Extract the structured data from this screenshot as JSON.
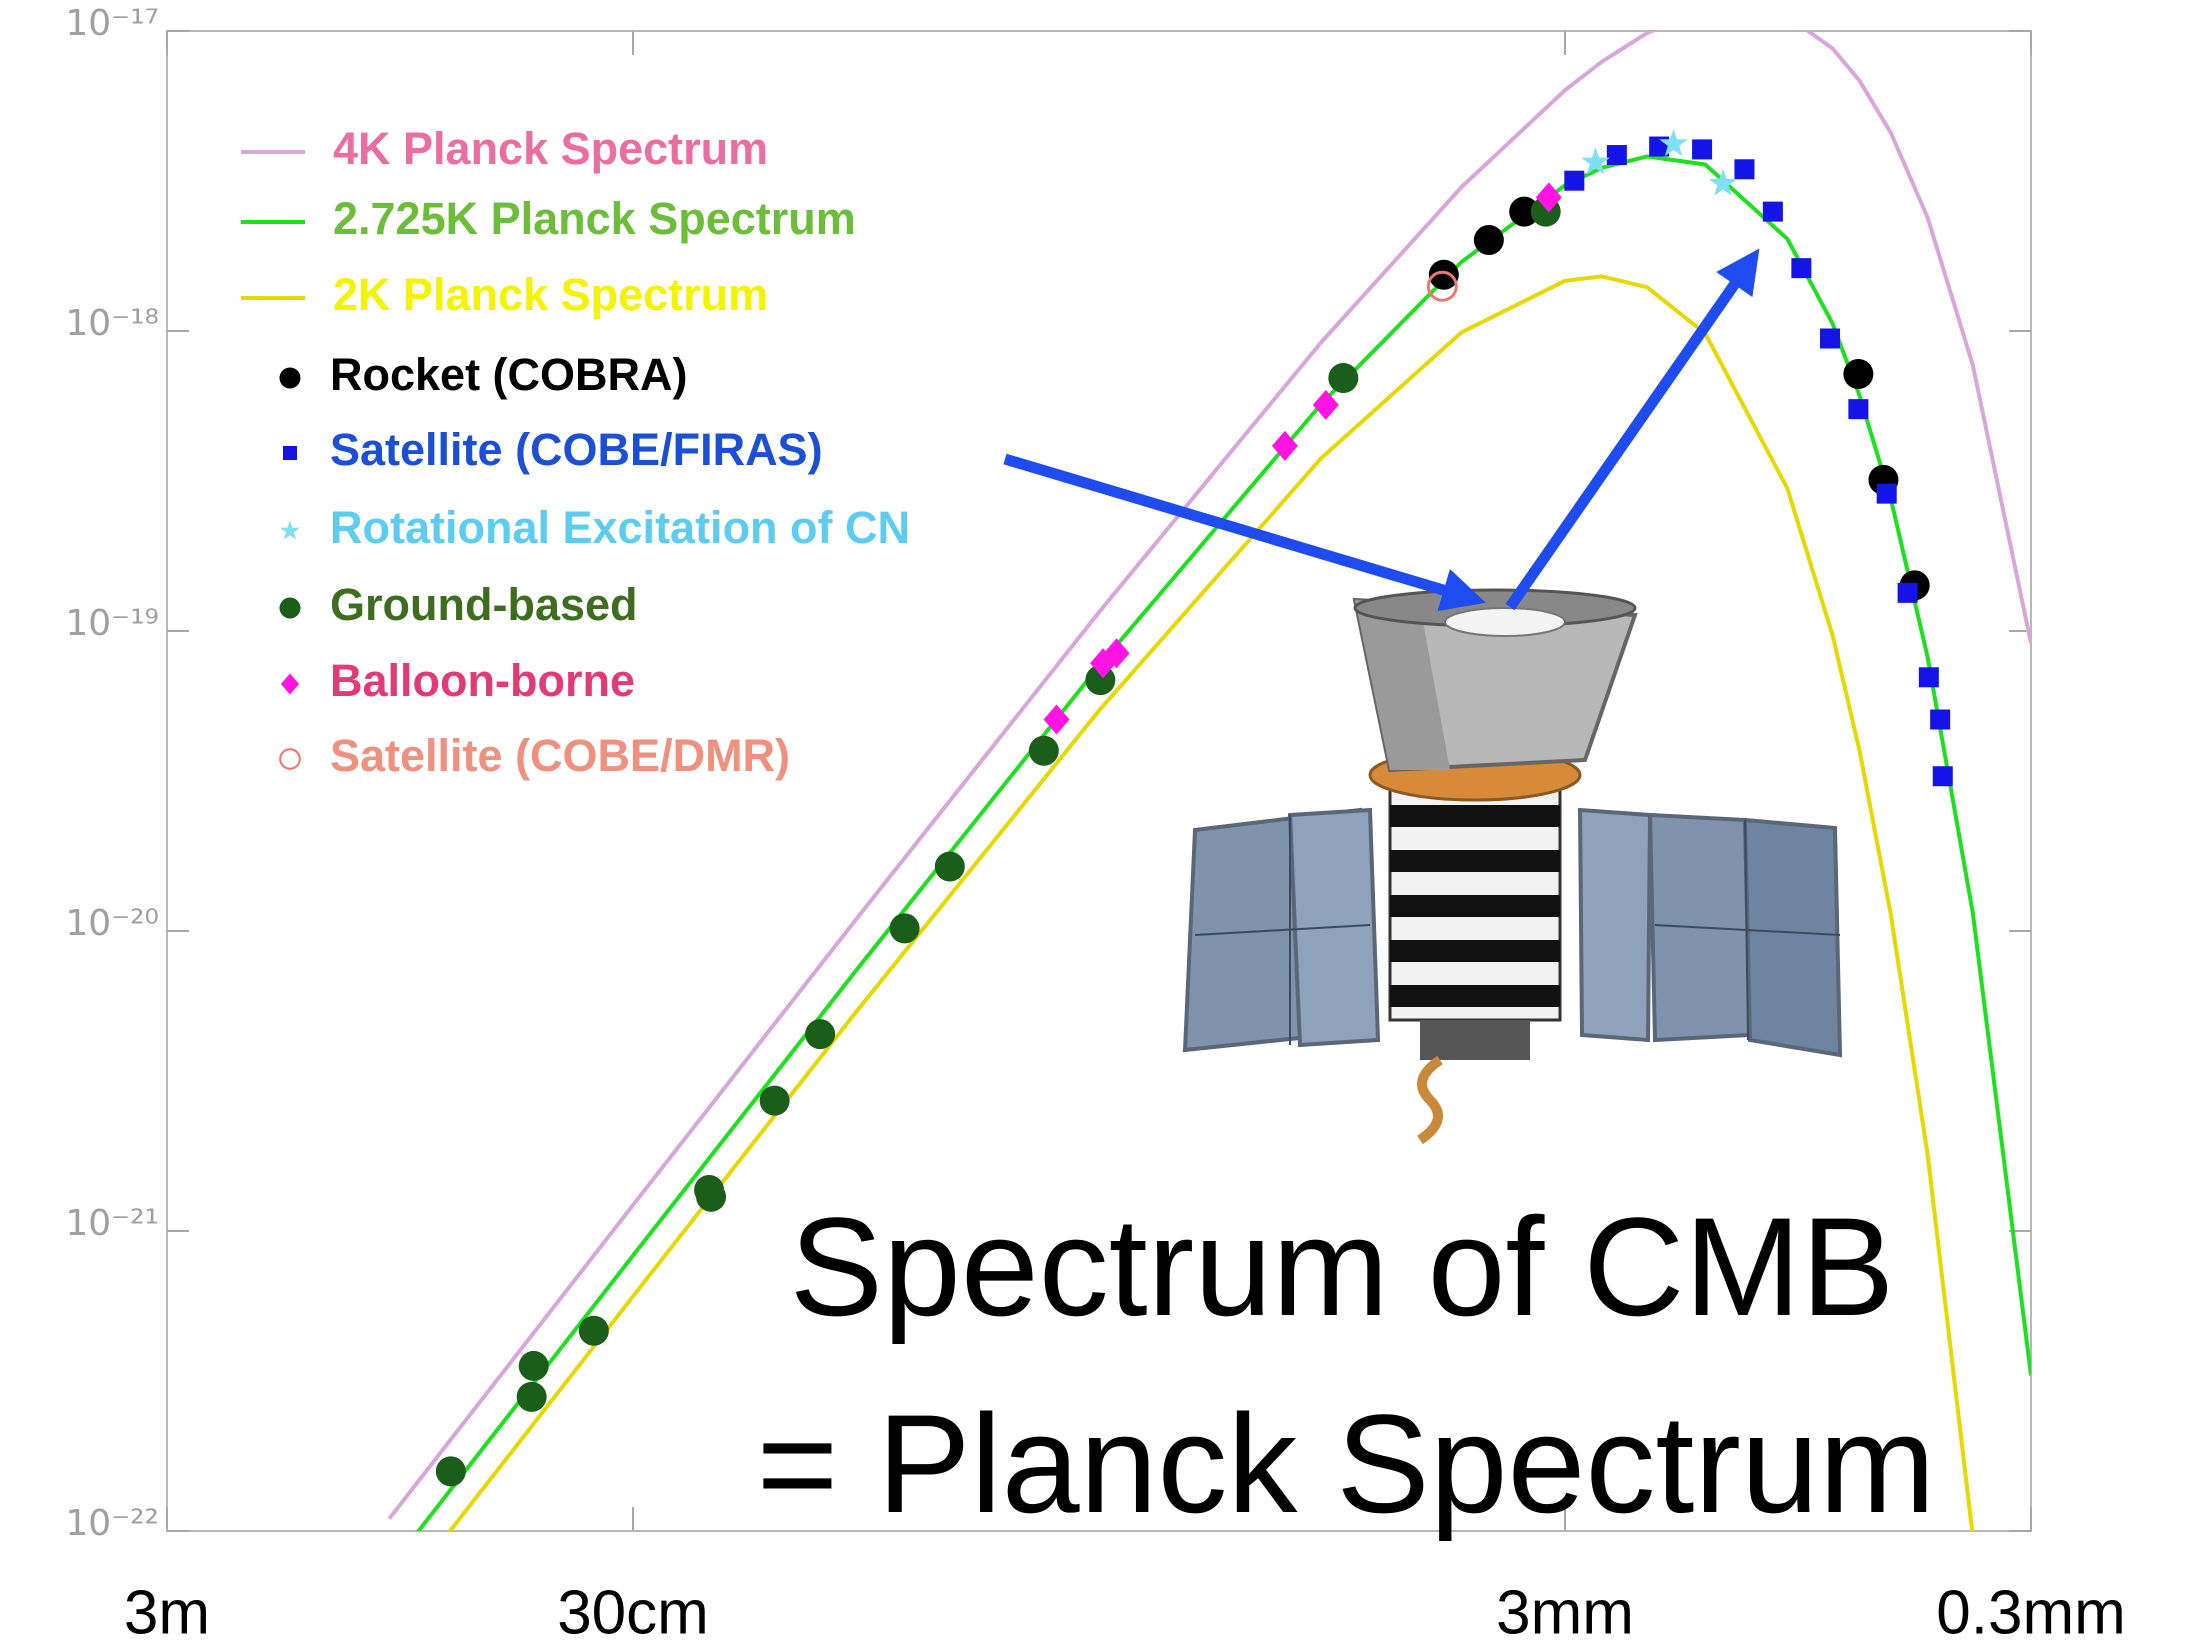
{
  "chart_data": {
    "type": "line",
    "xscale": "log",
    "yscale": "log",
    "xlim": [
      3,
      0.0003
    ],
    "ylim": [
      1e-22,
      1e-17
    ],
    "xticks": [
      {
        "value": 3,
        "label": "3m"
      },
      {
        "value": 0.3,
        "label": "30cm"
      },
      {
        "value": 0.003,
        "label": "3mm"
      },
      {
        "value": 0.0003,
        "label": "0.3mm"
      }
    ],
    "yticks": [
      {
        "value": 1e-22,
        "label": "10⁻²²"
      },
      {
        "value": 1e-21,
        "label": "10⁻²¹"
      },
      {
        "value": 1e-20,
        "label": "10⁻²⁰"
      },
      {
        "value": 1e-19,
        "label": "10⁻¹⁹"
      },
      {
        "value": 1e-18,
        "label": "10⁻¹⁸"
      },
      {
        "value": 1e-17,
        "label": "10⁻¹⁷"
      }
    ],
    "annotations": [
      "Spectrum of CMB",
      "= Planck Spectrum"
    ],
    "series": [
      {
        "name": "4K Planck Spectrum",
        "marker": "line",
        "color": "#d9a6dc",
        "text_color": "#ea6ea2",
        "x": [
          1,
          0.3,
          0.1,
          0.03,
          0.01,
          0.005,
          0.003,
          0.0025,
          0.002,
          0.0015,
          0.001,
          0.0008,
          0.0007,
          0.0006,
          0.0005,
          0.0004,
          0.0003
        ],
        "values": [
          1.1e-22,
          1.22e-21,
          1.085e-20,
          1.155e-19,
          9.18e-19,
          3.02e-18,
          6.35e-18,
          7.9e-18,
          9.85e-18,
          1.18e-17,
          1.12e-17,
          8.75e-18,
          6.83e-18,
          4.59e-18,
          2.39e-18,
          7.7e-19,
          9.1e-20
        ]
      },
      {
        "name": "2.725K Planck Spectrum",
        "marker": "line",
        "color": "#1ee01e",
        "text_color": "#6cbd3a",
        "x": [
          1,
          0.3,
          0.1,
          0.03,
          0.01,
          0.005,
          0.003,
          0.0025,
          0.002,
          0.0015,
          0.001,
          0.0008,
          0.0007,
          0.0006,
          0.0005,
          0.0004,
          0.0003
        ],
        "values": [
          7.5e-23,
          8.28e-22,
          7.33e-21,
          7.65e-20,
          5.71e-19,
          1.7e-18,
          3.06e-18,
          3.5e-18,
          3.82e-18,
          3.59e-18,
          2.03e-18,
          1.06e-18,
          6.1e-19,
          2.77e-19,
          8.2e-20,
          1.15e-20,
          3.3e-22
        ]
      },
      {
        "name": "2K Planck Spectrum",
        "marker": "line",
        "color": "#e6d800",
        "text_color": "#f4f400",
        "x": [
          1,
          0.3,
          0.1,
          0.03,
          0.01,
          0.005,
          0.003,
          0.0025,
          0.002,
          0.0015,
          0.001,
          0.0008,
          0.0007,
          0.0006,
          0.0005,
          0.0004
        ],
        "values": [
          5.5e-23,
          6.06e-22,
          5.33e-21,
          5.43e-20,
          3.77e-19,
          9.9e-19,
          1.47e-18,
          1.52e-18,
          1.4e-18,
          9.8e-19,
          2.99e-19,
          9.7e-20,
          4e-20,
          1.14e-20,
          1.8e-21,
          9.6e-23
        ]
      },
      {
        "name": "Rocket (COBRA)",
        "marker": "circle",
        "color": "#000000",
        "text_color": "#000000",
        "x": [
          0.00546,
          0.00437,
          0.00367,
          0.000704,
          0.000622,
          0.000533
        ],
        "values": [
          1.54e-18,
          2.01e-18,
          2.5e-18,
          7.19e-19,
          3.19e-19,
          1.42e-19
        ]
      },
      {
        "name": "Satellite (COBE/FIRAS)",
        "marker": "square",
        "color": "#1414e6",
        "text_color": "#1a4fd6",
        "x": [
          0.002865,
          0.002322,
          0.001884,
          0.001524,
          0.001236,
          0.001074,
          0.000933,
          0.00081,
          0.000704,
          0.000612,
          0.000552,
          0.000497,
          0.00047,
          0.000464
        ],
        "values": [
          3.17e-18,
          3.86e-18,
          4.12e-18,
          4.03e-18,
          3.46e-18,
          2.5e-18,
          1.62e-18,
          9.44e-19,
          5.49e-19,
          2.87e-19,
          1.34e-19,
          7.01e-20,
          5.07e-20,
          3.28e-20
        ]
      },
      {
        "name": "Rotational Excitation of CN",
        "marker": "star",
        "color": "#7fe0f5",
        "text_color": "#5ccdf0",
        "x": [
          0.00258,
          0.001755,
          0.001374
        ],
        "values": [
          3.65e-18,
          4.2e-18,
          3.1e-18
        ]
      },
      {
        "name": "Ground-based",
        "marker": "circle",
        "color": "#1b5e1b",
        "text_color": "#3f6d20",
        "x": [
          0.738,
          0.495,
          0.49,
          0.364,
          0.206,
          0.204,
          0.149,
          0.119,
          0.0784,
          0.0627,
          0.0394,
          0.0298,
          0.00897,
          0.0033
        ],
        "values": [
          1.58e-22,
          2.8e-22,
          3.55e-22,
          4.65e-22,
          1.37e-21,
          1.3e-21,
          2.72e-21,
          4.53e-21,
          1.02e-20,
          1.64e-20,
          3.99e-20,
          6.86e-20,
          6.97e-19,
          2.5e-18
        ]
      },
      {
        "name": "Balloon-borne",
        "marker": "diamond",
        "color": "#ff14e4",
        "text_color": "#e23a78",
        "x": [
          0.037,
          0.0294,
          0.0275,
          0.01197,
          0.00978,
          0.00325
        ],
        "values": [
          5.07e-20,
          7.81e-20,
          8.43e-20,
          4.14e-19,
          5.67e-19,
          2.79e-18
        ]
      },
      {
        "name": "Satellite (COBE/DMR)",
        "marker": "open-circle",
        "color": "#e87a72",
        "text_color": "#f0907e",
        "x": [
          0.0055
        ],
        "values": [
          1.41e-18
        ]
      }
    ]
  }
}
